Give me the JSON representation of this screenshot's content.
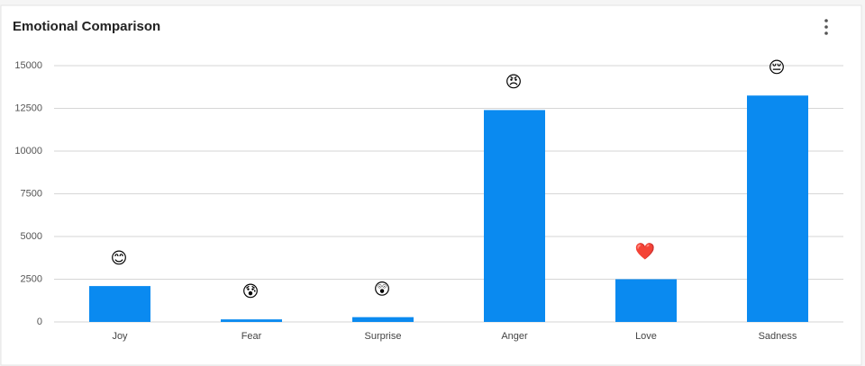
{
  "chart_data": {
    "type": "bar",
    "title": "Emotional Comparison",
    "categories": [
      "Joy",
      "Fear",
      "Surprise",
      "Anger",
      "Love",
      "Sadness"
    ],
    "values": [
      2100,
      150,
      280,
      12400,
      2500,
      13250
    ],
    "emojis": [
      "😊",
      "😰",
      "😲",
      "😠",
      "❤️",
      "😔"
    ],
    "color": "#0a8af0",
    "ylim": [
      0,
      15000
    ],
    "yticks": [
      0,
      2500,
      5000,
      7500,
      10000,
      12500,
      15000
    ],
    "grid": true
  }
}
